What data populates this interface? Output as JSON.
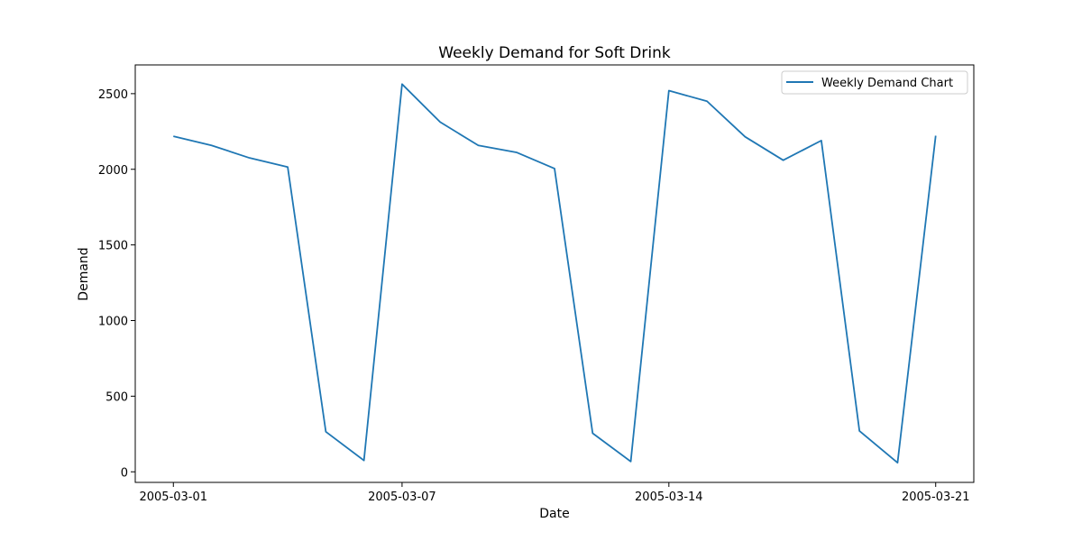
{
  "chart_data": {
    "type": "line",
    "title": "Weekly Demand for Soft Drink",
    "xlabel": "Date",
    "ylabel": "Demand",
    "x": [
      "2005-03-01",
      "2005-03-02",
      "2005-03-03",
      "2005-03-04",
      "2005-03-05",
      "2005-03-06",
      "2005-03-07",
      "2005-03-08",
      "2005-03-09",
      "2005-03-10",
      "2005-03-11",
      "2005-03-12",
      "2005-03-13",
      "2005-03-14",
      "2005-03-15",
      "2005-03-16",
      "2005-03-17",
      "2005-03-18",
      "2005-03-19",
      "2005-03-20",
      "2005-03-21"
    ],
    "series": [
      {
        "name": "Weekly Demand Chart",
        "color": "#1f77b4",
        "values": [
          2218,
          2158,
          2075,
          2015,
          265,
          75,
          2563,
          2312,
          2158,
          2112,
          2005,
          255,
          68,
          2520,
          2450,
          2215,
          2060,
          2190,
          270,
          60,
          2222
        ]
      }
    ],
    "xticks": [
      "2005-03-01",
      "2005-03-07",
      "2005-03-14",
      "2005-03-21"
    ],
    "yticks": [
      0,
      500,
      1000,
      1500,
      2000,
      2500
    ],
    "xlim": [
      "2005-02-28",
      "2005-03-22"
    ],
    "ylim": [
      -70,
      2690
    ],
    "grid": false,
    "legend_position": "top-right"
  }
}
